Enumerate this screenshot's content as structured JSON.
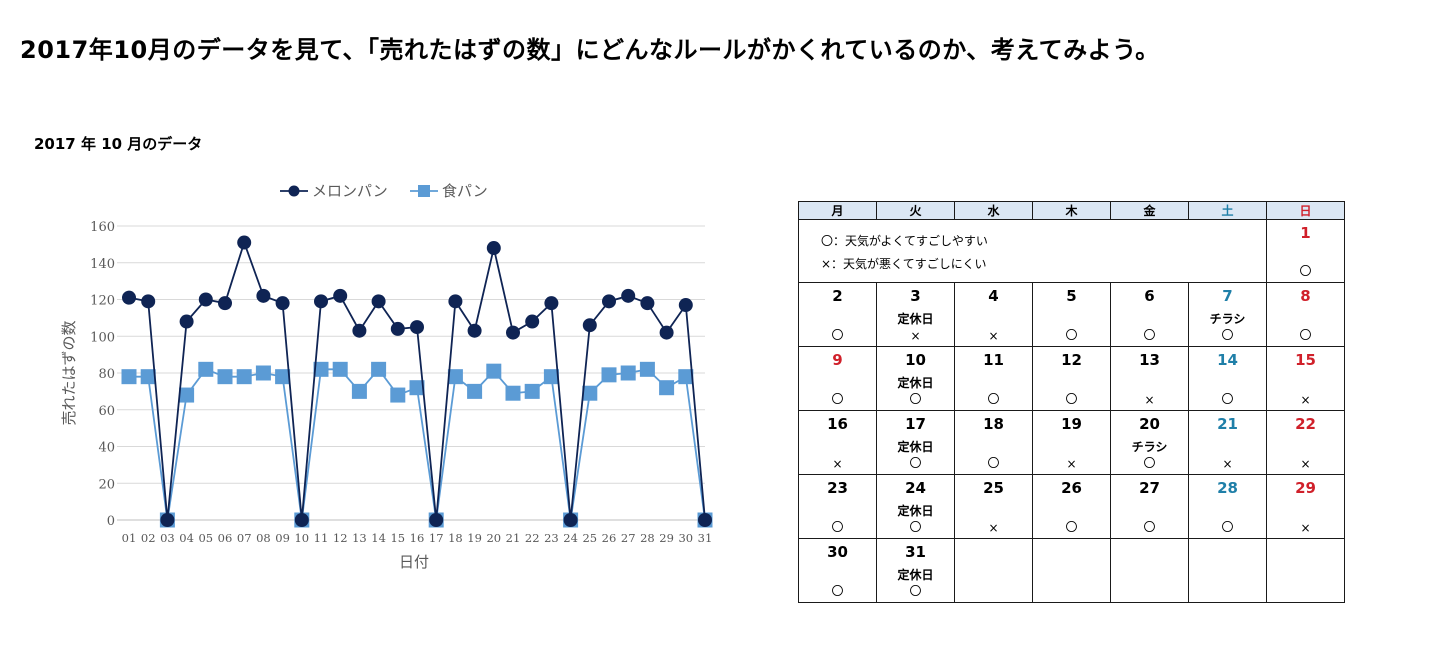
{
  "page": {
    "title": "2017年10月のデータを見て、「売れたはずの数」にどんなルールがかくれているのか、考えてみよう。"
  },
  "chart_data": {
    "type": "line",
    "title": "2017 年 10 月のデータ",
    "xlabel": "日付",
    "ylabel": "売れたはずの数",
    "ylim": [
      0,
      160
    ],
    "yticks": [
      0,
      20,
      40,
      60,
      80,
      100,
      120,
      140,
      160
    ],
    "grid": true,
    "legend_position": "top",
    "categories": [
      "01",
      "02",
      "03",
      "04",
      "05",
      "06",
      "07",
      "08",
      "09",
      "10",
      "11",
      "12",
      "13",
      "14",
      "15",
      "16",
      "17",
      "18",
      "19",
      "20",
      "21",
      "22",
      "23",
      "24",
      "25",
      "26",
      "27",
      "28",
      "29",
      "30",
      "31"
    ],
    "series": [
      {
        "name": "メロンパン",
        "marker": "circle",
        "color": "#0f2454",
        "values": [
          121,
          119,
          0,
          108,
          120,
          118,
          151,
          122,
          118,
          0,
          119,
          122,
          103,
          119,
          104,
          105,
          0,
          119,
          103,
          148,
          102,
          108,
          118,
          0,
          106,
          119,
          122,
          118,
          102,
          117,
          0
        ]
      },
      {
        "name": "食パン",
        "marker": "square",
        "color": "#5b9bd5",
        "values": [
          78,
          78,
          0,
          68,
          82,
          78,
          78,
          80,
          78,
          0,
          82,
          82,
          70,
          82,
          68,
          72,
          0,
          78,
          70,
          81,
          69,
          70,
          78,
          0,
          69,
          79,
          80,
          82,
          72,
          78,
          0
        ]
      }
    ]
  },
  "calendar": {
    "headers": [
      {
        "label": "月",
        "color": "#000000"
      },
      {
        "label": "火",
        "color": "#000000"
      },
      {
        "label": "水",
        "color": "#000000"
      },
      {
        "label": "木",
        "color": "#000000"
      },
      {
        "label": "金",
        "color": "#000000"
      },
      {
        "label": "土",
        "color": "#1f7fa8"
      },
      {
        "label": "日",
        "color": "#d0202a"
      }
    ],
    "legend": [
      "〇：天気がよくてすごしやすい",
      "×：天気が悪くてすごしにくい"
    ],
    "colors": {
      "weekday": "#000000",
      "saturday": "#1f7fa8",
      "holiday": "#d0202a"
    },
    "weeks": [
      [
        {
          "legend": true,
          "span": 6
        },
        {
          "day": "1",
          "type": "holiday",
          "note": "",
          "weather": "〇"
        }
      ],
      [
        {
          "day": "2",
          "type": "weekday",
          "note": "",
          "weather": "〇"
        },
        {
          "day": "3",
          "type": "weekday",
          "note": "定休日",
          "weather": "×"
        },
        {
          "day": "4",
          "type": "weekday",
          "note": "",
          "weather": "×"
        },
        {
          "day": "5",
          "type": "weekday",
          "note": "",
          "weather": "〇"
        },
        {
          "day": "6",
          "type": "weekday",
          "note": "",
          "weather": "〇"
        },
        {
          "day": "7",
          "type": "saturday",
          "note": "チラシ",
          "weather": "〇"
        },
        {
          "day": "8",
          "type": "holiday",
          "note": "",
          "weather": "〇"
        }
      ],
      [
        {
          "day": "9",
          "type": "holiday",
          "note": "",
          "weather": "〇"
        },
        {
          "day": "10",
          "type": "weekday",
          "note": "定休日",
          "weather": "〇"
        },
        {
          "day": "11",
          "type": "weekday",
          "note": "",
          "weather": "〇"
        },
        {
          "day": "12",
          "type": "weekday",
          "note": "",
          "weather": "〇"
        },
        {
          "day": "13",
          "type": "weekday",
          "note": "",
          "weather": "×"
        },
        {
          "day": "14",
          "type": "saturday",
          "note": "",
          "weather": "〇"
        },
        {
          "day": "15",
          "type": "holiday",
          "note": "",
          "weather": "×"
        }
      ],
      [
        {
          "day": "16",
          "type": "weekday",
          "note": "",
          "weather": "×"
        },
        {
          "day": "17",
          "type": "weekday",
          "note": "定休日",
          "weather": "〇"
        },
        {
          "day": "18",
          "type": "weekday",
          "note": "",
          "weather": "〇"
        },
        {
          "day": "19",
          "type": "weekday",
          "note": "",
          "weather": "×"
        },
        {
          "day": "20",
          "type": "weekday",
          "note": "チラシ",
          "weather": "〇"
        },
        {
          "day": "21",
          "type": "saturday",
          "note": "",
          "weather": "×"
        },
        {
          "day": "22",
          "type": "holiday",
          "note": "",
          "weather": "×"
        }
      ],
      [
        {
          "day": "23",
          "type": "weekday",
          "note": "",
          "weather": "〇"
        },
        {
          "day": "24",
          "type": "weekday",
          "note": "定休日",
          "weather": "〇"
        },
        {
          "day": "25",
          "type": "weekday",
          "note": "",
          "weather": "×"
        },
        {
          "day": "26",
          "type": "weekday",
          "note": "",
          "weather": "〇"
        },
        {
          "day": "27",
          "type": "weekday",
          "note": "",
          "weather": "〇"
        },
        {
          "day": "28",
          "type": "saturday",
          "note": "",
          "weather": "〇"
        },
        {
          "day": "29",
          "type": "holiday",
          "note": "",
          "weather": "×"
        }
      ],
      [
        {
          "day": "30",
          "type": "weekday",
          "note": "",
          "weather": "〇"
        },
        {
          "day": "31",
          "type": "weekday",
          "note": "定休日",
          "weather": "〇"
        },
        {
          "empty": true
        },
        {
          "empty": true
        },
        {
          "empty": true
        },
        {
          "empty": true
        },
        {
          "empty": true
        }
      ]
    ]
  }
}
